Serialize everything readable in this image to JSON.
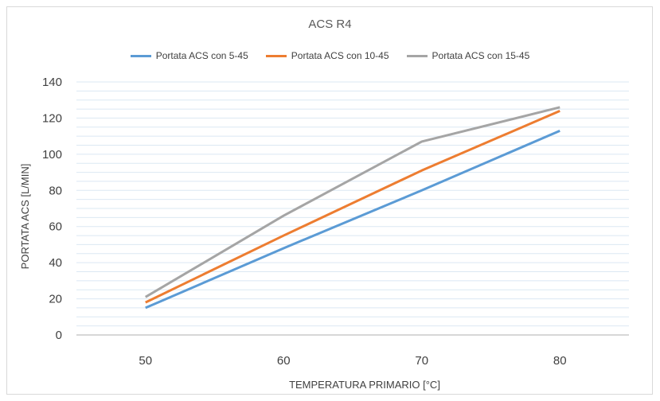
{
  "chart_data": {
    "type": "line",
    "title": "ACS R4",
    "xlabel": "TEMPERATURA PRIMARIO [°C]",
    "ylabel": "PORTATA ACS [L/MIN]",
    "x": [
      50,
      60,
      70,
      80
    ],
    "x_tick_labels": [
      "50",
      "60",
      "70",
      "80"
    ],
    "y_tick_labels": [
      "0",
      "20",
      "40",
      "60",
      "80",
      "100",
      "120",
      "140"
    ],
    "ylim": [
      0,
      140
    ],
    "grid": true,
    "legend_position": "top",
    "series": [
      {
        "name": "Portata ACS con 5-45",
        "color": "#5b9bd5",
        "values": [
          15,
          48,
          80,
          113
        ]
      },
      {
        "name": "Portata ACS con 10-45",
        "color": "#ed7d31",
        "values": [
          18,
          55,
          91,
          124
        ]
      },
      {
        "name": "Portata ACS con 15-45",
        "color": "#a5a5a5",
        "values": [
          21,
          66,
          107,
          126
        ]
      }
    ]
  }
}
